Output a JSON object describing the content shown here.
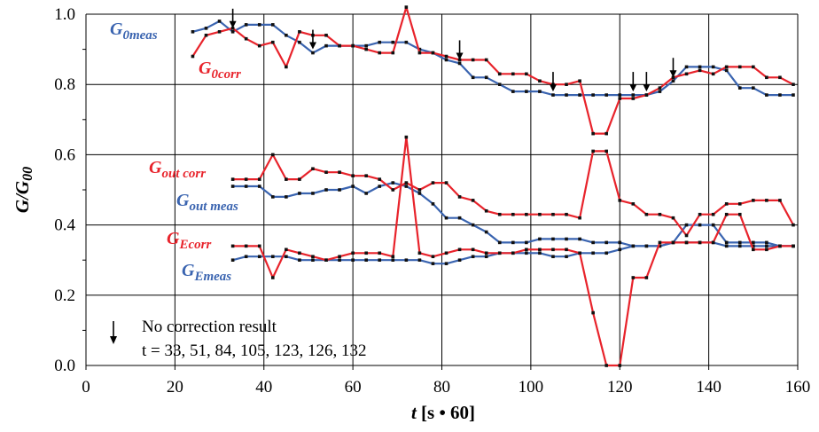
{
  "chart_data": {
    "type": "line",
    "xlabel": "t [s • 60]",
    "ylabel": "G/G00",
    "xlim": [
      0,
      160
    ],
    "ylim": [
      0,
      1.0
    ],
    "x_ticks": [
      "0",
      "20",
      "40",
      "60",
      "80",
      "100",
      "120",
      "140",
      "160"
    ],
    "y_ticks": [
      "0.0",
      "0.2",
      "0.4",
      "0.6",
      "0.8",
      "1.0"
    ],
    "grid": true,
    "colors": {
      "meas": "#3a64b0",
      "corr": "#e8232b"
    },
    "series": [
      {
        "name": "G0meas",
        "label_main": "G",
        "label_sub": "0meas",
        "color": "#3a64b0",
        "x": [
          24,
          27,
          30,
          33,
          36,
          39,
          42,
          45,
          48,
          51,
          54,
          57,
          60,
          63,
          66,
          69,
          72,
          75,
          78,
          81,
          84,
          87,
          90,
          93,
          96,
          99,
          102,
          105,
          108,
          111,
          114,
          117,
          120,
          123,
          126,
          129,
          132,
          135,
          138,
          141,
          144,
          147,
          150,
          153,
          156,
          159
        ],
        "y": [
          0.95,
          0.96,
          0.98,
          0.95,
          0.97,
          0.97,
          0.97,
          0.94,
          0.92,
          0.89,
          0.91,
          0.91,
          0.91,
          0.91,
          0.92,
          0.92,
          0.92,
          0.9,
          0.89,
          0.87,
          0.86,
          0.82,
          0.82,
          0.8,
          0.78,
          0.78,
          0.78,
          0.77,
          0.77,
          0.77,
          0.77,
          0.77,
          0.77,
          0.77,
          0.77,
          0.78,
          0.81,
          0.85,
          0.85,
          0.85,
          0.84,
          0.79,
          0.79,
          0.77,
          0.77,
          0.77
        ]
      },
      {
        "name": "G0corr",
        "label_main": "G",
        "label_sub": "0corr",
        "color": "#e8232b",
        "x": [
          24,
          27,
          30,
          33,
          36,
          39,
          42,
          45,
          48,
          51,
          54,
          57,
          60,
          63,
          66,
          69,
          72,
          75,
          78,
          81,
          84,
          87,
          90,
          93,
          96,
          99,
          102,
          105,
          108,
          111,
          114,
          117,
          120,
          123,
          126,
          129,
          132,
          135,
          138,
          141,
          144,
          147,
          150,
          153,
          156,
          159
        ],
        "y": [
          0.88,
          0.94,
          0.95,
          0.96,
          0.93,
          0.91,
          0.92,
          0.85,
          0.95,
          0.94,
          0.94,
          0.91,
          0.91,
          0.9,
          0.89,
          0.89,
          1.02,
          0.89,
          0.89,
          0.88,
          0.87,
          0.87,
          0.87,
          0.83,
          0.83,
          0.83,
          0.81,
          0.8,
          0.8,
          0.81,
          0.66,
          0.66,
          0.76,
          0.76,
          0.77,
          0.79,
          0.82,
          0.83,
          0.84,
          0.83,
          0.85,
          0.85,
          0.85,
          0.82,
          0.82,
          0.8
        ]
      },
      {
        "name": "Goutmeas",
        "label_main": "G",
        "label_sub": "out meas",
        "color": "#3a64b0",
        "x": [
          33,
          36,
          39,
          42,
          45,
          48,
          51,
          54,
          57,
          60,
          63,
          66,
          69,
          72,
          75,
          78,
          81,
          84,
          87,
          90,
          93,
          96,
          99,
          102,
          105,
          108,
          111,
          114,
          117,
          120,
          123,
          126,
          129,
          132,
          135,
          138,
          141,
          144,
          147,
          150,
          153,
          156,
          159
        ],
        "y": [
          0.51,
          0.51,
          0.51,
          0.48,
          0.48,
          0.49,
          0.49,
          0.5,
          0.5,
          0.51,
          0.49,
          0.51,
          0.52,
          0.51,
          0.49,
          0.46,
          0.42,
          0.42,
          0.4,
          0.38,
          0.35,
          0.35,
          0.35,
          0.36,
          0.36,
          0.36,
          0.36,
          0.35,
          0.35,
          0.35,
          0.34,
          0.34,
          0.34,
          0.35,
          0.4,
          0.4,
          0.4,
          0.35,
          0.35,
          0.35,
          0.35,
          0.34,
          0.34
        ]
      },
      {
        "name": "Goutcorr",
        "label_main": "G",
        "label_sub": "out corr",
        "color": "#e8232b",
        "x": [
          33,
          36,
          39,
          42,
          45,
          48,
          51,
          54,
          57,
          60,
          63,
          66,
          69,
          72,
          75,
          78,
          81,
          84,
          87,
          90,
          93,
          96,
          99,
          102,
          105,
          108,
          111,
          114,
          117,
          120,
          123,
          126,
          129,
          132,
          135,
          138,
          141,
          144,
          147,
          150,
          153,
          156,
          159
        ],
        "y": [
          0.53,
          0.53,
          0.53,
          0.6,
          0.53,
          0.53,
          0.56,
          0.55,
          0.55,
          0.54,
          0.54,
          0.53,
          0.5,
          0.52,
          0.5,
          0.52,
          0.52,
          0.48,
          0.47,
          0.44,
          0.43,
          0.43,
          0.43,
          0.43,
          0.43,
          0.43,
          0.42,
          0.61,
          0.61,
          0.47,
          0.46,
          0.43,
          0.43,
          0.42,
          0.37,
          0.43,
          0.43,
          0.46,
          0.46,
          0.47,
          0.47,
          0.47,
          0.4
        ]
      },
      {
        "name": "GEmeas",
        "label_main": "G",
        "label_sub": "Emeas",
        "color": "#3a64b0",
        "x": [
          33,
          36,
          39,
          42,
          45,
          48,
          51,
          54,
          57,
          60,
          63,
          66,
          69,
          72,
          75,
          78,
          81,
          84,
          87,
          90,
          93,
          96,
          99,
          102,
          105,
          108,
          111,
          114,
          117,
          120,
          123,
          126,
          129,
          132,
          135,
          138,
          141,
          144,
          147,
          150,
          153,
          156,
          159
        ],
        "y": [
          0.3,
          0.31,
          0.31,
          0.31,
          0.31,
          0.3,
          0.3,
          0.3,
          0.3,
          0.3,
          0.3,
          0.3,
          0.3,
          0.3,
          0.3,
          0.29,
          0.29,
          0.3,
          0.31,
          0.31,
          0.32,
          0.32,
          0.32,
          0.32,
          0.31,
          0.31,
          0.32,
          0.32,
          0.32,
          0.33,
          0.34,
          0.34,
          0.34,
          0.35,
          0.35,
          0.35,
          0.35,
          0.34,
          0.34,
          0.34,
          0.34,
          0.34,
          0.34
        ]
      },
      {
        "name": "GEcorr",
        "label_main": "G",
        "label_sub": "Ecorr",
        "color": "#e8232b",
        "x": [
          33,
          36,
          39,
          42,
          45,
          48,
          51,
          54,
          57,
          60,
          63,
          66,
          69,
          72,
          75,
          78,
          81,
          84,
          87,
          90,
          93,
          96,
          99,
          102,
          105,
          108,
          111,
          114,
          117,
          120,
          123,
          126,
          129,
          132,
          135,
          138,
          141,
          144,
          147,
          150,
          153,
          156,
          159
        ],
        "y": [
          0.34,
          0.34,
          0.34,
          0.25,
          0.33,
          0.32,
          0.31,
          0.3,
          0.31,
          0.32,
          0.32,
          0.32,
          0.31,
          0.65,
          0.32,
          0.31,
          0.32,
          0.33,
          0.33,
          0.32,
          0.32,
          0.32,
          0.33,
          0.33,
          0.33,
          0.33,
          0.32,
          0.15,
          0.0,
          0.0,
          0.25,
          0.25,
          0.35,
          0.35,
          0.35,
          0.35,
          0.35,
          0.43,
          0.43,
          0.33,
          0.33,
          0.34,
          0.34
        ]
      }
    ],
    "no_correction_points": [
      33,
      51,
      84,
      105,
      123,
      126,
      132
    ],
    "legend_text": "No correction result",
    "legend_list": "t = 33, 51, 84, 105, 123, 126, 132"
  }
}
